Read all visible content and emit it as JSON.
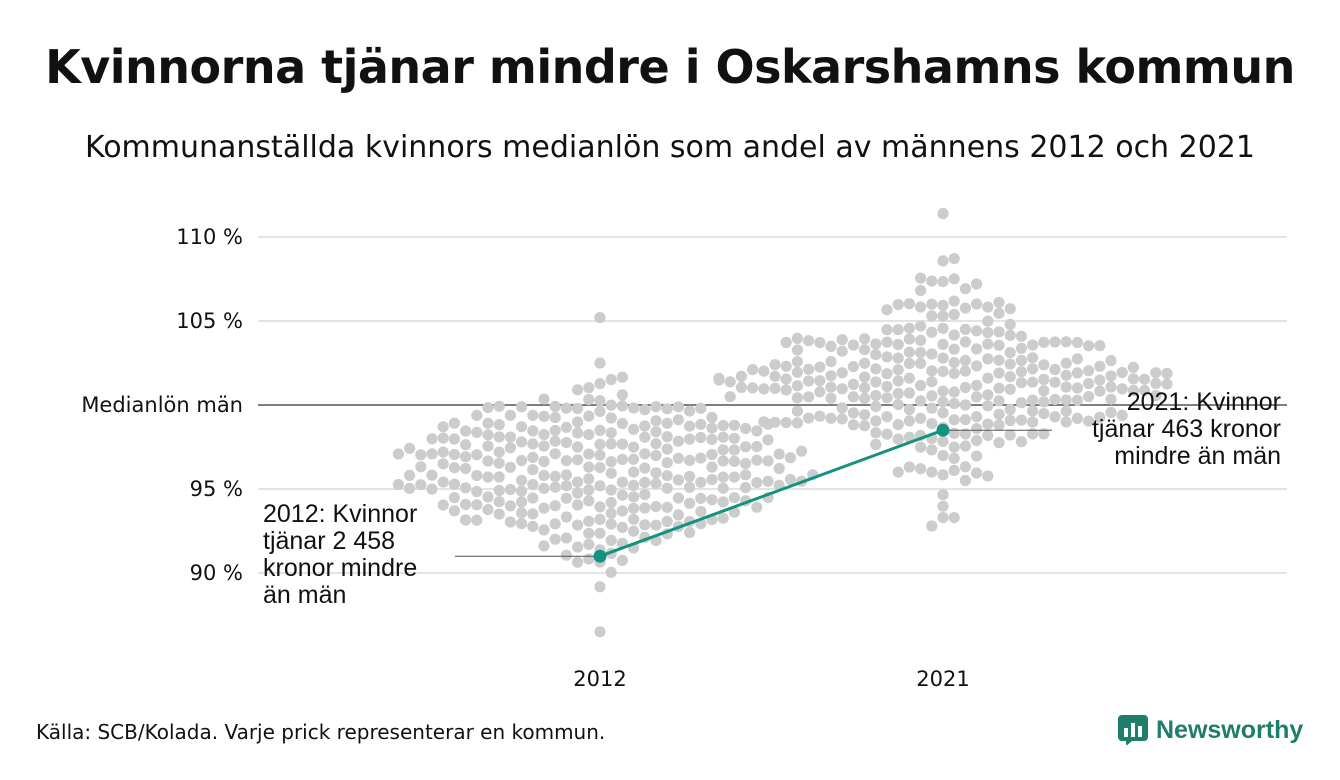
{
  "title": "Kvinnorna tjänar mindre i Oskarshamns kommun",
  "subtitle": "Kommunanställda kvinnors medianlön som andel av männens 2012 och 2021",
  "source": "Källa: SCB/Kolada. Varje prick representerar en kommun.",
  "brand": "Newsworthy",
  "colors": {
    "dots": "#cccccc",
    "highlight": "#13927f",
    "grid": "#e3e3e3",
    "reference": "#333333",
    "brand": "#1e7d6b"
  },
  "chart_data": {
    "type": "scatter",
    "style": "beeswarm",
    "ylim": [
      86,
      112
    ],
    "yticks": [
      {
        "value": 110,
        "label": "110 %"
      },
      {
        "value": 105,
        "label": "105 %"
      },
      {
        "value": 100,
        "label": "Medianlön män"
      },
      {
        "value": 95,
        "label": "95 %"
      },
      {
        "value": 90,
        "label": "90 %"
      }
    ],
    "categories": [
      "2012",
      "2021"
    ],
    "reference_line": {
      "value": 100,
      "label": "Medianlön män"
    },
    "distribution_2012": {
      "category": "2012",
      "min": 86.5,
      "max": 105.2,
      "center": 96.0,
      "dot_count": 290
    },
    "distribution_2021": {
      "category": "2021",
      "min": 92.8,
      "max": 111.4,
      "center": 101.5,
      "dot_count": 290
    },
    "highlight_series": {
      "name": "Oskarshamns kommun",
      "points": [
        {
          "x": "2012",
          "y": 91.0
        },
        {
          "x": "2021",
          "y": 98.5
        }
      ]
    },
    "annotations": [
      {
        "x": "2012",
        "lines": [
          "2012: Kvinnor",
          "tjänar 2 458",
          "kronor mindre",
          "än män"
        ]
      },
      {
        "x": "2021",
        "lines": [
          "2021: Kvinnor",
          "tjänar 463 kronor",
          "mindre än män"
        ]
      }
    ]
  }
}
